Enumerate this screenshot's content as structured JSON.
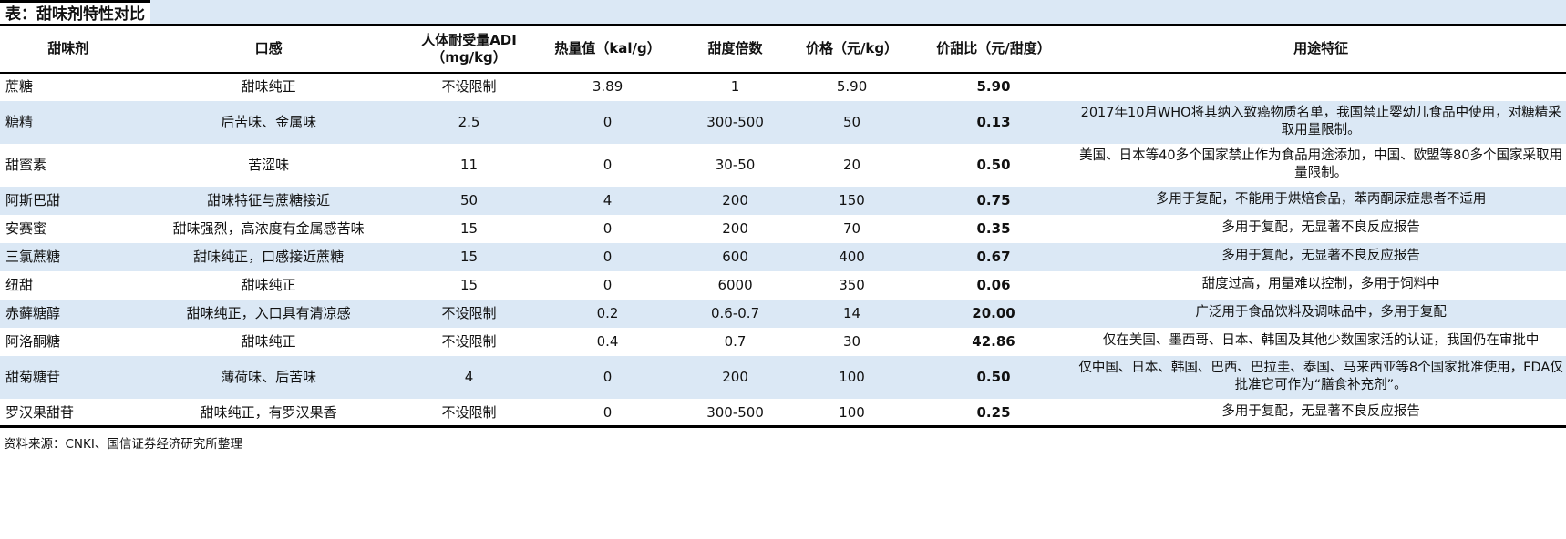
{
  "title": "表：甜味剂特性对比",
  "source": "资料来源：CNKI、国信证券经济研究所整理",
  "stripe_color": "#dbe8f5",
  "rule_color": "#000000",
  "table": {
    "columns": [
      {
        "key": "name",
        "label": "甜味剂"
      },
      {
        "key": "taste",
        "label": "口感"
      },
      {
        "key": "adi",
        "label": "人体耐受量ADI\n（mg/kg）"
      },
      {
        "key": "calorie",
        "label": "热量值（kal/g）"
      },
      {
        "key": "sweetness",
        "label": "甜度倍数"
      },
      {
        "key": "price",
        "label": "价格（元/kg）"
      },
      {
        "key": "ratio",
        "label": "价甜比（元/甜度）"
      },
      {
        "key": "usage",
        "label": "用途特征"
      }
    ],
    "rows": [
      {
        "name": "蔗糖",
        "taste": "甜味纯正",
        "adi": "不设限制",
        "calorie": "3.89",
        "sweetness": "1",
        "price": "5.90",
        "ratio": "5.90",
        "usage": ""
      },
      {
        "name": "糖精",
        "taste": "后苦味、金属味",
        "adi": "2.5",
        "calorie": "0",
        "sweetness": "300-500",
        "price": "50",
        "ratio": "0.13",
        "usage": "2017年10月WHO将其纳入致癌物质名单，我国禁止婴幼儿食品中使用，对糖精采取用量限制。"
      },
      {
        "name": "甜蜜素",
        "taste": "苦涩味",
        "adi": "11",
        "calorie": "0",
        "sweetness": "30-50",
        "price": "20",
        "ratio": "0.50",
        "usage": "美国、日本等40多个国家禁止作为食品用途添加，中国、欧盟等80多个国家采取用量限制。"
      },
      {
        "name": "阿斯巴甜",
        "taste": "甜味特征与蔗糖接近",
        "adi": "50",
        "calorie": "4",
        "sweetness": "200",
        "price": "150",
        "ratio": "0.75",
        "usage": "多用于复配，不能用于烘焙食品，苯丙酮尿症患者不适用"
      },
      {
        "name": "安赛蜜",
        "taste": "甜味强烈，高浓度有金属感苦味",
        "adi": "15",
        "calorie": "0",
        "sweetness": "200",
        "price": "70",
        "ratio": "0.35",
        "usage": "多用于复配，无显著不良反应报告"
      },
      {
        "name": "三氯蔗糖",
        "taste": "甜味纯正，口感接近蔗糖",
        "adi": "15",
        "calorie": "0",
        "sweetness": "600",
        "price": "400",
        "ratio": "0.67",
        "usage": "多用于复配，无显著不良反应报告"
      },
      {
        "name": "纽甜",
        "taste": "甜味纯正",
        "adi": "15",
        "calorie": "0",
        "sweetness": "6000",
        "price": "350",
        "ratio": "0.06",
        "usage": "甜度过高，用量难以控制，多用于饲料中"
      },
      {
        "name": "赤藓糖醇",
        "taste": "甜味纯正，入口具有清凉感",
        "adi": "不设限制",
        "calorie": "0.2",
        "sweetness": "0.6-0.7",
        "price": "14",
        "ratio": "20.00",
        "usage": "广泛用于食品饮料及调味品中，多用于复配"
      },
      {
        "name": "阿洛酮糖",
        "taste": "甜味纯正",
        "adi": "不设限制",
        "calorie": "0.4",
        "sweetness": "0.7",
        "price": "30",
        "ratio": "42.86",
        "usage": "仅在美国、墨西哥、日本、韩国及其他少数国家活的认证，我国仍在审批中"
      },
      {
        "name": "甜菊糖苷",
        "taste": "薄荷味、后苦味",
        "adi": "4",
        "calorie": "0",
        "sweetness": "200",
        "price": "100",
        "ratio": "0.50",
        "usage": "仅中国、日本、韩国、巴西、巴拉圭、泰国、马来西亚等8个国家批准使用，FDA仅批准它可作为“膳食补充剂”。"
      },
      {
        "name": "罗汉果甜苷",
        "taste": "甜味纯正，有罗汉果香",
        "adi": "不设限制",
        "calorie": "0",
        "sweetness": "300-500",
        "price": "100",
        "ratio": "0.25",
        "usage": "多用于复配，无显著不良反应报告"
      }
    ]
  }
}
